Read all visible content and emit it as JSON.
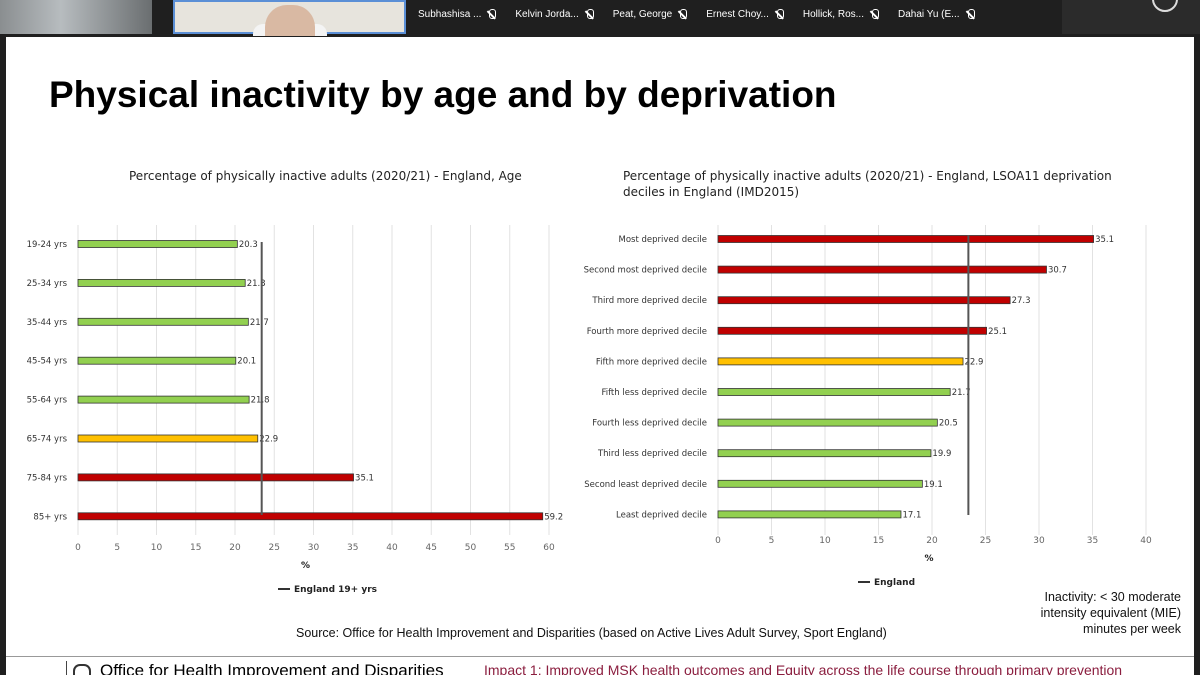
{
  "participants": [
    {
      "name": "Subhashisa ..."
    },
    {
      "name": "Kelvin Jorda..."
    },
    {
      "name": "Peat, George"
    },
    {
      "name": "Ernest Choy..."
    },
    {
      "name": "Hollick, Ros..."
    },
    {
      "name": "Dahai Yu (E..."
    }
  ],
  "slide": {
    "title": "Physical inactivity by age and by deprivation",
    "note": "Inactivity: < 30 moderate intensity equivalent (MIE) minutes per week",
    "source": "Source: Office for Health Improvement and Disparities (based on Active Lives Adult Survey, Sport England)",
    "footer_org": "Office for Health Improvement and Disparities",
    "footer_impact": "Impact 1: Improved MSK health outcomes and Equity across the life course through primary prevention"
  },
  "colors": {
    "red": "#c00000",
    "amber": "#ffc000",
    "green": "#92d050",
    "reference": "#555555"
  },
  "chart_data": [
    {
      "type": "bar",
      "orientation": "horizontal",
      "title": "Percentage of physically inactive adults (2020/21) - England, Age",
      "xlabel": "%",
      "xlim": [
        0,
        60
      ],
      "xticks": [
        0,
        5,
        10,
        15,
        20,
        25,
        30,
        35,
        40,
        45,
        50,
        55,
        60
      ],
      "grid": true,
      "categories": [
        "19-24 yrs",
        "25-34 yrs",
        "35-44 yrs",
        "45-54 yrs",
        "55-64 yrs",
        "65-74 yrs",
        "75-84 yrs",
        "85+ yrs"
      ],
      "values": [
        20.3,
        21.3,
        21.7,
        20.1,
        21.8,
        22.9,
        35.1,
        59.2
      ],
      "bar_colors": [
        "green",
        "green",
        "green",
        "green",
        "green",
        "amber",
        "red",
        "red"
      ],
      "reference_line": {
        "name": "England 19+ yrs",
        "value": 23.4
      },
      "legend": "bottom"
    },
    {
      "type": "bar",
      "orientation": "horizontal",
      "title": "Percentage of physically inactive adults (2020/21) - England, LSOA11 deprivation deciles in England (IMD2015)",
      "xlabel": "%",
      "xlim": [
        0,
        40
      ],
      "xticks": [
        0,
        5,
        10,
        15,
        20,
        25,
        30,
        35,
        40
      ],
      "grid": true,
      "categories": [
        "Most deprived decile",
        "Second most deprived decile",
        "Third more deprived decile",
        "Fourth more deprived decile",
        "Fifth more deprived decile",
        "Fifth less deprived decile",
        "Fourth less deprived decile",
        "Third less deprived decile",
        "Second least deprived decile",
        "Least deprived decile"
      ],
      "values": [
        35.1,
        30.7,
        27.3,
        25.1,
        22.9,
        21.7,
        20.5,
        19.9,
        19.1,
        17.1
      ],
      "bar_colors": [
        "red",
        "red",
        "red",
        "red",
        "amber",
        "green",
        "green",
        "green",
        "green",
        "green"
      ],
      "reference_line": {
        "name": "England",
        "value": 23.4
      },
      "legend": "bottom"
    }
  ]
}
